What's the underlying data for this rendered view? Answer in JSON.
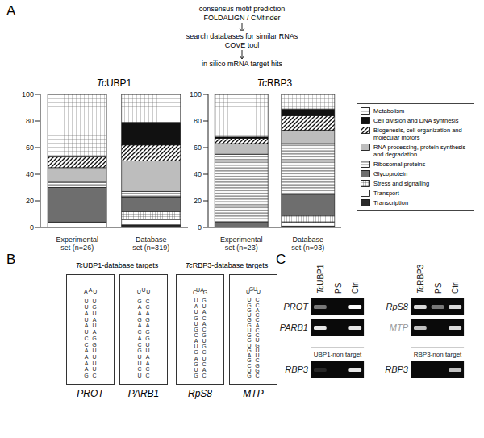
{
  "panel_labels": [
    "A",
    "B",
    "C"
  ],
  "flow": [
    [
      "consensus motif prediction",
      "FOLDALIGN / CMfinder"
    ],
    [
      "search databases for similar RNAs",
      "COVE tool"
    ],
    [
      "in silico mRNA target hits"
    ]
  ],
  "chart_data": [
    {
      "type": "bar",
      "stacked": true,
      "title": "TcUBP1",
      "categories": [
        "Experimental set (n=26)",
        "Database set (n=319)"
      ],
      "ylim": [
        0,
        100
      ],
      "yticks": [
        0,
        20,
        40,
        60,
        80,
        100
      ],
      "series": [
        {
          "name": "Metabolism",
          "color": "#ffffff",
          "values": [
            47,
            21
          ]
        },
        {
          "name": "Cell division and DNA synthesis",
          "color": "#111111",
          "values": [
            0,
            17
          ]
        },
        {
          "name": "Biogenesis, cell organization and molecular motors",
          "color": "#ffffff",
          "values": [
            8,
            12
          ]
        },
        {
          "name": "RNA processing, protein synthesis and degradation",
          "color": "#bdbdbd",
          "values": [
            11,
            23
          ]
        },
        {
          "name": "Ribosomal proteins",
          "color": "#ffffff",
          "values": [
            4,
            4
          ]
        },
        {
          "name": "Glycoprotein",
          "color": "#6e6e6e",
          "values": [
            26,
            11
          ]
        },
        {
          "name": "Stress and signalling",
          "color": "#ffffff",
          "values": [
            0,
            6
          ]
        },
        {
          "name": "Transport",
          "color": "#ffffff",
          "values": [
            4,
            4
          ]
        },
        {
          "name": "Transcription",
          "color": "#2a2a2a",
          "values": [
            0,
            2
          ]
        }
      ]
    },
    {
      "type": "bar",
      "stacked": true,
      "legend": "right",
      "title": "TcRBP3",
      "categories": [
        "Experimental set (n=23)",
        "Database set (n=93)"
      ],
      "ylim": [
        0,
        100
      ],
      "yticks": [
        0,
        20,
        40,
        60,
        80,
        100
      ],
      "series": [
        {
          "name": "Metabolism",
          "color": "#ffffff",
          "values": [
            32,
            11
          ]
        },
        {
          "name": "Cell division and DNA synthesis",
          "color": "#111111",
          "values": [
            1,
            5
          ]
        },
        {
          "name": "Biogenesis, cell organization and molecular motors",
          "color": "#ffffff",
          "values": [
            4,
            11
          ]
        },
        {
          "name": "RNA processing, protein synthesis and degradation",
          "color": "#bdbdbd",
          "values": [
            8,
            10
          ]
        },
        {
          "name": "Ribosomal proteins",
          "color": "#ffffff",
          "values": [
            51,
            38
          ]
        },
        {
          "name": "Glycoprotein",
          "color": "#6e6e6e",
          "values": [
            4,
            16
          ]
        },
        {
          "name": "Stress and signalling",
          "color": "#ffffff",
          "values": [
            0,
            5
          ]
        },
        {
          "name": "Transport",
          "color": "#ffffff",
          "values": [
            0,
            3
          ]
        },
        {
          "name": "Transcription",
          "color": "#2a2a2a",
          "values": [
            0,
            1
          ]
        }
      ]
    }
  ],
  "panel_b": {
    "groups": [
      {
        "title": "TcUBP1-database targets",
        "structures": [
          {
            "name": "PROT",
            "sequence": "GAAAACCUAUAUUAAUUGUAUAGGUUUUC"
          },
          {
            "name": "PARB1",
            "sequence": "UCUUGCACAGAAGUUUCCAGAGGUUAACC"
          }
        ]
      },
      {
        "title": "TcRBP3-database targets",
        "structures": [
          {
            "name": "RpS8",
            "sequence": "GUGAGUACGUGUAUCUAGGUACACGUGCUCAC"
          },
          {
            "name": "MTP",
            "sequence": "GUCGAGUGGUGGUGGUUGUUCCACCACCUGUUCGGC"
          }
        ]
      }
    ]
  },
  "panel_c": {
    "groups": [
      {
        "lanes": [
          "TcUBP1",
          "PS",
          "Ctrl"
        ],
        "targets": [
          {
            "name": "PROT",
            "band_intensity": [
              0.45,
              0,
              1
            ]
          },
          {
            "name": "PARB1",
            "band_intensity": [
              0.9,
              0,
              0.9
            ]
          }
        ],
        "non_target_label": "UBP1-non target",
        "non_target": {
          "name": "RBP3",
          "band_intensity": [
            0.12,
            0,
            0.9
          ]
        }
      },
      {
        "lanes": [
          "TcRBP3",
          "PS",
          "Ctrl"
        ],
        "targets": [
          {
            "name": "RpS8",
            "band_intensity": [
              0.85,
              0.45,
              0.85
            ]
          },
          {
            "name": "MTP",
            "color": "#9a9a9a",
            "band_intensity": [
              0.75,
              0,
              0.85
            ]
          }
        ],
        "non_target_label": "RBP3-non target",
        "non_target": {
          "name": "RBP3",
          "band_intensity": [
            0,
            0,
            0.75
          ]
        }
      }
    ]
  }
}
